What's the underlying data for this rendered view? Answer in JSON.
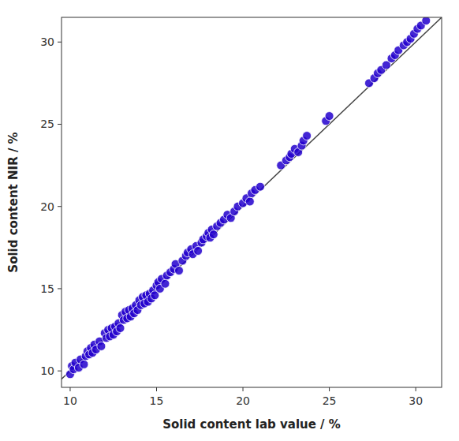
{
  "chart_data": {
    "type": "scatter",
    "xlabel": "Solid content lab value / %",
    "ylabel": "Solid content NIR / %",
    "xlim": [
      9.5,
      31.5
    ],
    "ylim": [
      9.0,
      31.5
    ],
    "xticks": [
      10,
      15,
      20,
      25,
      30
    ],
    "yticks": [
      10,
      15,
      20,
      25,
      30
    ],
    "series": [
      {
        "type": "scatter",
        "color": "#2200cc",
        "marker": "circle",
        "x": [
          10.0,
          10.1,
          10.2,
          10.3,
          10.5,
          10.6,
          10.8,
          10.9,
          11.0,
          11.1,
          11.2,
          11.3,
          11.4,
          11.5,
          11.7,
          11.8,
          12.0,
          12.1,
          12.2,
          12.3,
          12.4,
          12.5,
          12.6,
          12.7,
          12.8,
          12.9,
          13.0,
          13.1,
          13.2,
          13.3,
          13.4,
          13.5,
          13.6,
          13.7,
          13.8,
          13.9,
          14.0,
          14.1,
          14.2,
          14.3,
          14.4,
          14.5,
          14.6,
          14.7,
          14.8,
          14.9,
          15.0,
          15.1,
          15.2,
          15.3,
          15.5,
          15.6,
          15.8,
          16.0,
          16.1,
          16.3,
          16.5,
          16.7,
          16.8,
          17.0,
          17.1,
          17.3,
          17.4,
          17.6,
          17.7,
          17.9,
          18.0,
          18.1,
          18.2,
          18.3,
          18.5,
          18.7,
          18.9,
          19.1,
          19.3,
          19.5,
          19.7,
          20.0,
          20.2,
          20.4,
          20.5,
          20.7,
          21.0,
          22.2,
          22.5,
          22.7,
          22.8,
          23.0,
          23.2,
          23.4,
          23.5,
          23.7,
          24.8,
          25.0,
          27.3,
          27.6,
          27.8,
          28.0,
          28.3,
          28.6,
          28.8,
          29.0,
          29.3,
          29.5,
          29.7,
          29.9,
          30.1,
          30.3,
          30.6
        ],
        "values": [
          9.8,
          10.3,
          10.1,
          10.5,
          10.2,
          10.7,
          10.4,
          10.9,
          11.2,
          11.0,
          11.4,
          11.1,
          11.6,
          11.3,
          11.8,
          11.5,
          12.3,
          12.0,
          12.5,
          12.1,
          12.6,
          12.2,
          12.7,
          12.4,
          12.9,
          12.6,
          13.4,
          13.1,
          13.6,
          13.2,
          13.7,
          13.3,
          13.8,
          13.5,
          14.0,
          13.7,
          14.3,
          14.0,
          14.5,
          14.1,
          14.6,
          14.2,
          14.7,
          14.4,
          14.9,
          14.6,
          15.2,
          15.4,
          15.0,
          15.6,
          15.3,
          15.8,
          16.0,
          16.2,
          16.5,
          16.1,
          16.7,
          17.0,
          17.2,
          17.4,
          17.1,
          17.6,
          17.3,
          17.8,
          18.0,
          18.2,
          18.4,
          18.1,
          18.6,
          18.3,
          18.8,
          19.0,
          19.2,
          19.5,
          19.3,
          19.7,
          20.0,
          20.2,
          20.5,
          20.3,
          20.8,
          21.0,
          21.2,
          22.5,
          22.8,
          23.0,
          23.2,
          23.5,
          23.3,
          23.7,
          24.0,
          24.3,
          25.2,
          25.5,
          27.5,
          27.8,
          28.1,
          28.3,
          28.6,
          29.0,
          29.2,
          29.5,
          29.8,
          30.0,
          30.2,
          30.5,
          30.8,
          31.0,
          31.3
        ]
      },
      {
        "type": "line",
        "color": "#444444",
        "line_style": "solid",
        "x": [
          9.5,
          31.5
        ],
        "values": [
          9.5,
          31.5
        ]
      }
    ]
  }
}
